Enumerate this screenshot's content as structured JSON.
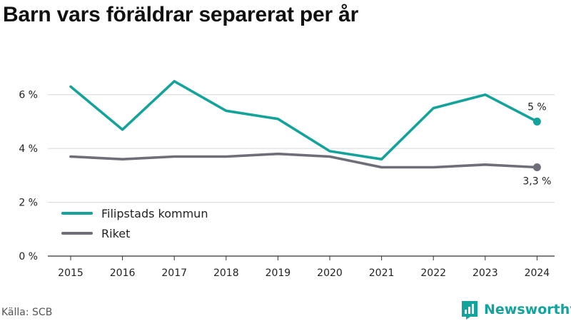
{
  "title": "Barn vars föräldrar separerat per år",
  "source": "Källa: SCB",
  "brand": {
    "name": "Newsworthy",
    "icon": "newsworthy-logo-icon",
    "color": "#14a39a"
  },
  "chart_data": {
    "type": "line",
    "title": "Barn vars föräldrar separerat per år",
    "xlabel": "",
    "ylabel": "",
    "x": [
      "2015",
      "2016",
      "2017",
      "2018",
      "2019",
      "2020",
      "2021",
      "2022",
      "2023",
      "2024"
    ],
    "ylim": [
      0,
      7
    ],
    "y_ticks": [
      {
        "value": 0,
        "label": "0 %"
      },
      {
        "value": 2,
        "label": "2 %"
      },
      {
        "value": 4,
        "label": "4 %"
      },
      {
        "value": 6,
        "label": "6 %"
      }
    ],
    "grid": true,
    "legend_position": "bottom-left",
    "series": [
      {
        "name": "Filipstads kommun",
        "color": "#14a39a",
        "values": [
          6.3,
          4.7,
          6.5,
          5.4,
          5.1,
          3.9,
          3.6,
          5.5,
          6.0,
          5.0
        ],
        "end_label": "5 %"
      },
      {
        "name": "Riket",
        "color": "#6e6e78",
        "values": [
          3.7,
          3.6,
          3.7,
          3.7,
          3.8,
          3.7,
          3.3,
          3.3,
          3.4,
          3.3
        ],
        "end_label": "3,3 %"
      }
    ]
  }
}
